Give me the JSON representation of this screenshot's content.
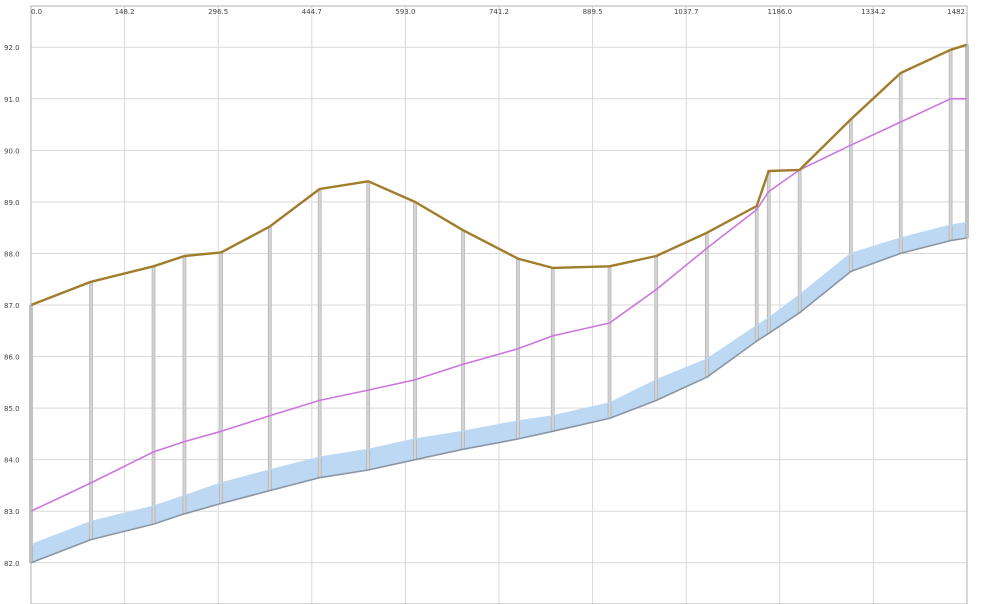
{
  "chart_data": {
    "type": "line",
    "title": "",
    "xlabel": "",
    "ylabel": "",
    "x_ticks": [
      "0.0",
      "148.2",
      "296.5",
      "444.7",
      "593.0",
      "741.2",
      "889.5",
      "1037.7",
      "1186.0",
      "1334.2",
      "1482"
    ],
    "y_ticks": [
      "82.0",
      "83.0",
      "84.0",
      "85.0",
      "86.0",
      "87.0",
      "88.0",
      "89.0",
      "90.0",
      "91.0",
      "92.0"
    ],
    "xlim": [
      0,
      1482
    ],
    "ylim": [
      81.2,
      92.8
    ],
    "grid": true,
    "x_axis_position": "top",
    "stations": [
      0,
      95,
      194,
      243,
      301,
      378,
      457,
      534,
      608,
      684,
      771,
      826,
      916,
      990,
      1070,
      1149,
      1168,
      1217,
      1298,
      1377,
      1456,
      1482
    ],
    "series": [
      {
        "color": "#a07d2c",
        "values": [
          87.0,
          87.45,
          87.75,
          87.95,
          88.02,
          88.52,
          89.25,
          89.4,
          89.0,
          88.45,
          87.9,
          87.72,
          87.75,
          87.95,
          88.4,
          88.92,
          89.6,
          89.62,
          90.6,
          91.5,
          91.95,
          92.05
        ]
      },
      {
        "color": "#cc77dd",
        "values": [
          83.0,
          83.55,
          84.15,
          84.35,
          84.55,
          84.85,
          85.15,
          85.35,
          85.55,
          85.85,
          86.15,
          86.4,
          86.65,
          87.3,
          88.1,
          88.85,
          89.2,
          89.62,
          90.1,
          90.55,
          91.0,
          91.0
        ]
      },
      {
        "color": "#bcd8f2",
        "values": [
          82.35,
          82.8,
          83.1,
          83.3,
          83.55,
          83.8,
          84.05,
          84.2,
          84.4,
          84.55,
          84.75,
          84.85,
          85.1,
          85.55,
          85.95,
          86.6,
          86.75,
          87.2,
          88.0,
          88.3,
          88.55,
          88.6
        ]
      },
      {
        "color": "#8a96a6",
        "values": [
          82.0,
          82.45,
          82.75,
          82.95,
          83.15,
          83.4,
          83.65,
          83.8,
          84.0,
          84.2,
          84.4,
          84.55,
          84.8,
          85.15,
          85.6,
          86.3,
          86.45,
          86.85,
          87.65,
          88.0,
          88.25,
          88.3
        ]
      }
    ],
    "vertical_drops": true
  }
}
